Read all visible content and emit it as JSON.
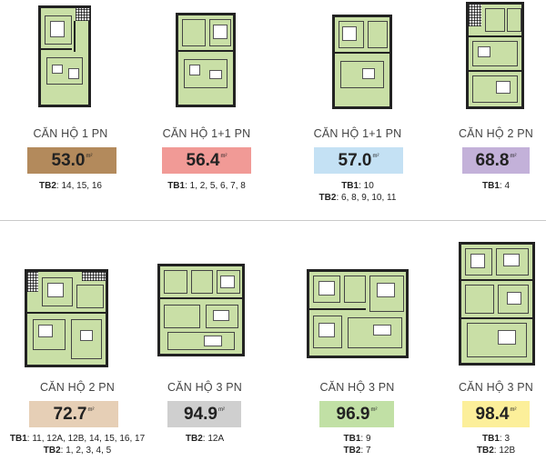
{
  "units": [
    {
      "name": "CĂN HỘ 1 PN",
      "area": "53.0",
      "unit": "m²",
      "color": "#b38a5c",
      "floors": [
        {
          "tower": "TB2",
          "list": "14, 15, 16"
        }
      ]
    },
    {
      "name": "CĂN HỘ 1+1 PN",
      "area": "56.4",
      "unit": "m²",
      "color": "#f19a96",
      "floors": [
        {
          "tower": "TB1",
          "list": "1, 2, 5, 6, 7, 8"
        }
      ]
    },
    {
      "name": "CĂN HỘ 1+1 PN",
      "area": "57.0",
      "unit": "m²",
      "color": "#c4e1f4",
      "floors": [
        {
          "tower": "TB1",
          "list": "10"
        },
        {
          "tower": "TB2",
          "list": "6, 8, 9, 10, 11"
        }
      ]
    },
    {
      "name": "CĂN HỘ 2 PN",
      "area": "68.8",
      "unit": "m²",
      "color": "#c3b1d9",
      "floors": [
        {
          "tower": "TB1",
          "list": "4"
        }
      ]
    },
    {
      "name": "CĂN HỘ 2 PN",
      "area": "72.7",
      "unit": "m²",
      "color": "#e6cfb6",
      "floors": [
        {
          "tower": "TB1",
          "list": "11, 12A, 12B, 14, 15, 16, 17"
        },
        {
          "tower": "TB2",
          "list": "1, 2, 3, 4, 5"
        }
      ]
    },
    {
      "name": "CĂN HỘ 3 PN",
      "area": "94.9",
      "unit": "m²",
      "color": "#cfcfcf",
      "floors": [
        {
          "tower": "TB2",
          "list": "12A"
        }
      ]
    },
    {
      "name": "CĂN HỘ 3 PN",
      "area": "96.9",
      "unit": "m²",
      "color": "#c1e0a5",
      "floors": [
        {
          "tower": "TB1",
          "list": "9"
        },
        {
          "tower": "TB2",
          "list": "7"
        }
      ]
    },
    {
      "name": "CĂN HỘ 3 PN",
      "area": "98.4",
      "unit": "m²",
      "color": "#fcef9a",
      "floors": [
        {
          "tower": "TB1",
          "list": "3"
        },
        {
          "tower": "TB2",
          "list": "12B"
        }
      ]
    }
  ]
}
